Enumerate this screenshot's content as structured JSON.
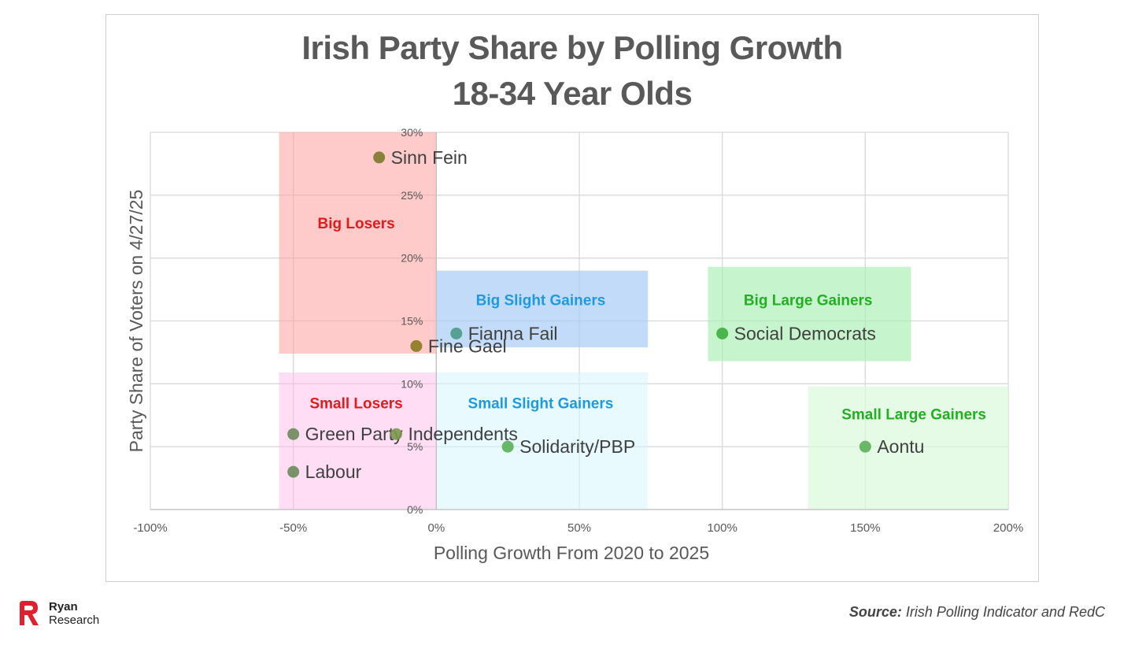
{
  "chart_data": {
    "type": "scatter",
    "title": "Irish Party Share by Polling Growth",
    "subtitle": "18-34 Year Olds",
    "xlabel": "Polling Growth From 2020 to 2025",
    "ylabel": "Party Share of Voters on 4/27/25",
    "xlim": [
      -1.0,
      2.0
    ],
    "ylim": [
      0,
      0.3
    ],
    "x_ticks": [
      {
        "value": -1.0,
        "label": "-100%"
      },
      {
        "value": -0.5,
        "label": "-50%"
      },
      {
        "value": 0,
        "label": "0%"
      },
      {
        "value": 0.5,
        "label": "50%"
      },
      {
        "value": 1.0,
        "label": "100%"
      },
      {
        "value": 1.5,
        "label": "150%"
      },
      {
        "value": 2.0,
        "label": "200%"
      }
    ],
    "y_ticks": [
      {
        "value": 0,
        "label": "0%"
      },
      {
        "value": 0.05,
        "label": "5%"
      },
      {
        "value": 0.1,
        "label": "10%"
      },
      {
        "value": 0.15,
        "label": "15%"
      },
      {
        "value": 0.2,
        "label": "20%"
      },
      {
        "value": 0.25,
        "label": "25%"
      },
      {
        "value": 0.3,
        "label": "30%"
      }
    ],
    "grid": true,
    "points": [
      {
        "label": "Sinn Fein",
        "x": -0.2,
        "y": 0.28,
        "color": "#7a7a2a"
      },
      {
        "label": "Fianna Fail",
        "x": 0.07,
        "y": 0.14,
        "color": "#4a9a88"
      },
      {
        "label": "Fine Gael",
        "x": -0.07,
        "y": 0.13,
        "color": "#8a7a20"
      },
      {
        "label": "Social Democrats",
        "x": 1.0,
        "y": 0.14,
        "color": "#3fae3f"
      },
      {
        "label": "Green Party",
        "x": -0.5,
        "y": 0.06,
        "color": "#6a8a5a"
      },
      {
        "label": "Independents",
        "x": -0.14,
        "y": 0.06,
        "color": "#7a9a4a"
      },
      {
        "label": "Solidarity/PBP",
        "x": 0.25,
        "y": 0.05,
        "color": "#5ab05a"
      },
      {
        "label": "Labour",
        "x": -0.5,
        "y": 0.03,
        "color": "#6a8a5a"
      },
      {
        "label": "Aontu",
        "x": 1.5,
        "y": 0.05,
        "color": "#5ab05a"
      }
    ],
    "regions": [
      {
        "label": "Big Losers",
        "x0": -0.55,
        "x1": 0,
        "y0": 0.124,
        "y1": 0.3,
        "fill": "#ff9f9f",
        "opacity": 0.55,
        "text_color": "#e21b1b",
        "label_x": -0.28,
        "label_y": 0.228
      },
      {
        "label": "Big Slight Gainers",
        "x0": 0,
        "x1": 0.74,
        "y0": 0.129,
        "y1": 0.19,
        "fill": "#a8ccf5",
        "opacity": 0.7,
        "text_color": "#1e9be0",
        "label_x": 0.365,
        "label_y": 0.167
      },
      {
        "label": "Big Large Gainers",
        "x0": 0.95,
        "x1": 1.66,
        "y0": 0.118,
        "y1": 0.193,
        "fill": "#a8eeb0",
        "opacity": 0.65,
        "text_color": "#22b022",
        "label_x": 1.3,
        "label_y": 0.167
      },
      {
        "label": "Small Losers",
        "x0": -0.55,
        "x1": 0,
        "y0": 0,
        "y1": 0.109,
        "fill": "#ffb5e8",
        "opacity": 0.45,
        "text_color": "#e21b1b",
        "label_x": -0.28,
        "label_y": 0.085
      },
      {
        "label": "Small Slight Gainers",
        "x0": 0,
        "x1": 0.74,
        "y0": 0,
        "y1": 0.109,
        "fill": "#d6f5fb",
        "opacity": 0.55,
        "text_color": "#1e9be0",
        "label_x": 0.365,
        "label_y": 0.085
      },
      {
        "label": "Small Large Gainers",
        "x0": 1.3,
        "x1": 2.0,
        "y0": 0,
        "y1": 0.098,
        "fill": "#dcfadc",
        "opacity": 0.7,
        "text_color": "#22b022",
        "label_x": 1.67,
        "label_y": 0.076
      }
    ]
  },
  "source": {
    "label": "Source:",
    "text": " Irish Polling Indicator and RedC"
  },
  "logo": {
    "line1": "Ryan",
    "line2": "Research",
    "color": "#e0202e"
  }
}
